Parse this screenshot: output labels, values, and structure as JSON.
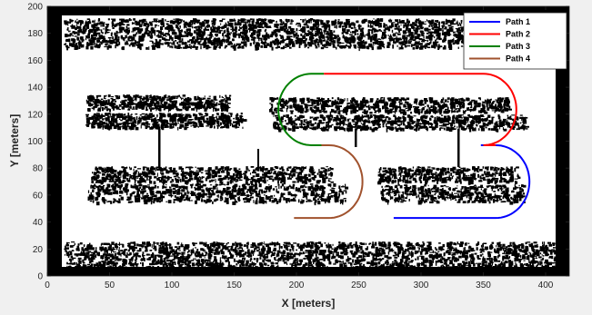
{
  "chart_data": {
    "type": "line",
    "title": "",
    "xlabel": "X [meters]",
    "ylabel": "Y [meters]",
    "xlim": [
      0,
      410
    ],
    "ylim": [
      0,
      200
    ],
    "xticks": [
      0,
      50,
      100,
      150,
      200,
      250,
      300,
      350,
      400
    ],
    "yticks": [
      0,
      20,
      40,
      60,
      80,
      100,
      120,
      140,
      160,
      180,
      200
    ],
    "grid": false,
    "legend_location": "top-right",
    "background": {
      "map_type": "binary occupancy map",
      "free_color": "#ffffff",
      "occupied_color": "#000000"
    },
    "series": [
      {
        "name": "Path 1",
        "color": "#0000ff",
        "segments": [
          {
            "kind": "line",
            "from": [
              348,
              97
            ],
            "to": [
              360,
              97
            ]
          },
          {
            "kind": "arc",
            "center": [
              360,
              70
            ],
            "radius": 27,
            "start_deg": 90,
            "end_deg": -90,
            "direction": "cw"
          },
          {
            "kind": "line",
            "from": [
              360,
              43
            ],
            "to": [
              278,
              43
            ]
          }
        ]
      },
      {
        "name": "Path 2",
        "color": "#ff0000",
        "segments": [
          {
            "kind": "line",
            "from": [
              222,
              150
            ],
            "to": [
              350,
              150
            ]
          },
          {
            "kind": "arc",
            "center": [
              350,
              123.5
            ],
            "radius": 26.5,
            "start_deg": 90,
            "end_deg": -90,
            "direction": "cw"
          },
          {
            "kind": "line",
            "from": [
              350,
              97
            ],
            "to": [
              360,
              97
            ]
          }
        ]
      },
      {
        "name": "Path 3",
        "color": "#008000",
        "segments": [
          {
            "kind": "line",
            "from": [
              222,
              150
            ],
            "to": [
              212,
              150
            ]
          },
          {
            "kind": "arc",
            "center": [
              212,
              123.5
            ],
            "radius": 26.5,
            "start_deg": 90,
            "end_deg": 270,
            "direction": "ccw"
          },
          {
            "kind": "line",
            "from": [
              212,
              97
            ],
            "to": [
              222,
              97
            ]
          }
        ]
      },
      {
        "name": "Path 4",
        "color": "#a0522d",
        "segments": [
          {
            "kind": "line",
            "from": [
              220,
              97
            ],
            "to": [
              226,
              97
            ]
          },
          {
            "kind": "arc",
            "center": [
              226,
              70
            ],
            "radius": 27,
            "start_deg": 90,
            "end_deg": -90,
            "direction": "cw"
          },
          {
            "kind": "line",
            "from": [
              226,
              43
            ],
            "to": [
              198,
              43
            ]
          }
        ]
      }
    ]
  }
}
